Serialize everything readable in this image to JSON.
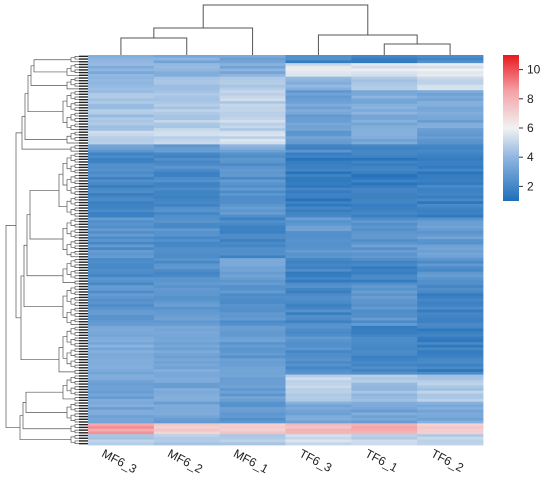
{
  "chart_data": {
    "type": "heatmap",
    "title": "",
    "xlabel": "",
    "ylabel": "",
    "columns": [
      "MF6_3",
      "MF6_2",
      "MF6_1",
      "TF6_3",
      "TF6_1",
      "TF6_2"
    ],
    "row_count": 144,
    "row_labels_visible": false,
    "value_range": [
      1,
      11
    ],
    "colorbar": {
      "ticks": [
        2,
        4,
        6,
        8,
        10
      ],
      "colors": [
        "#1f6fb9",
        "#8fb6e0",
        "#f2f2f2",
        "#f4a3a7",
        "#e8191e"
      ]
    },
    "column_dendrogram": {
      "clusters": [
        [
          "MF6_3",
          "MF6_2"
        ],
        [
          "MF6_1"
        ],
        [
          "TF6_3"
        ],
        [
          "TF6_1",
          "TF6_2"
        ]
      ],
      "groups": [
        [
          "MF6_3",
          "MF6_2",
          "MF6_1"
        ],
        [
          "TF6_3",
          "TF6_1",
          "TF6_2"
        ]
      ]
    },
    "row_dendrogram": true,
    "row_blocks": [
      {
        "rows": [
          0,
          3
        ],
        "values": [
          3.6,
          3.6,
          3.4,
          2.0,
          1.9,
          2.2
        ]
      },
      {
        "rows": [
          3,
          8
        ],
        "values": [
          3.8,
          3.8,
          3.6,
          5.5,
          5.6,
          5.8
        ]
      },
      {
        "rows": [
          8,
          13
        ],
        "values": [
          3.9,
          4.5,
          4.8,
          3.8,
          4.6,
          5.3
        ]
      },
      {
        "rows": [
          13,
          28
        ],
        "values": [
          4.4,
          4.7,
          5.0,
          3.2,
          3.6,
          3.3
        ]
      },
      {
        "rows": [
          28,
          33
        ],
        "values": [
          5.2,
          5.1,
          5.3,
          3.0,
          3.4,
          2.9
        ]
      },
      {
        "rows": [
          33,
          36
        ],
        "values": [
          3.0,
          3.0,
          3.5,
          2.2,
          2.2,
          2.4
        ]
      },
      {
        "rows": [
          36,
          60
        ],
        "values": [
          2.1,
          2.2,
          2.5,
          1.6,
          1.6,
          1.7
        ]
      },
      {
        "rows": [
          60,
          75
        ],
        "values": [
          2.5,
          2.4,
          2.1,
          2.8,
          2.7,
          2.9
        ]
      },
      {
        "rows": [
          75,
          85
        ],
        "values": [
          2.3,
          2.4,
          3.1,
          1.9,
          2.0,
          2.5
        ]
      },
      {
        "rows": [
          85,
          100
        ],
        "values": [
          2.7,
          2.8,
          2.6,
          2.1,
          2.6,
          1.9
        ]
      },
      {
        "rows": [
          100,
          118
        ],
        "values": [
          3.6,
          3.5,
          2.9,
          2.4,
          2.0,
          1.8
        ]
      },
      {
        "rows": [
          118,
          128
        ],
        "values": [
          3.3,
          3.3,
          2.9,
          5.0,
          4.4,
          4.7
        ]
      },
      {
        "rows": [
          128,
          136
        ],
        "values": [
          3.4,
          3.2,
          2.8,
          3.4,
          3.3,
          3.5
        ]
      },
      {
        "rows": [
          136,
          140
        ],
        "values": [
          8.6,
          7.0,
          7.4,
          7.6,
          8.2,
          7.0
        ]
      },
      {
        "rows": [
          140,
          144
        ],
        "values": [
          4.8,
          4.7,
          4.5,
          5.2,
          5.0,
          4.9
        ]
      }
    ]
  }
}
